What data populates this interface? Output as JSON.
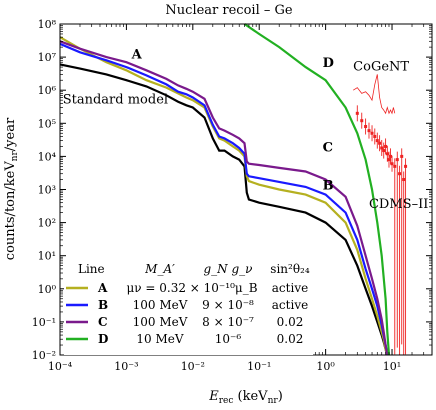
{
  "chart_data": {
    "type": "line",
    "title": "Nuclear recoil – Ge",
    "xlabel_main": "E",
    "xlabel_sub": "rec",
    "xlabel_unit_pre": " (keV",
    "xlabel_unit_sub": "nr",
    "xlabel_unit_post": ")",
    "ylabel": "counts/ton/keV",
    "ylabel_sub": "nr",
    "ylabel_post": "/year",
    "x_scale": "log",
    "y_scale": "log",
    "xlim": [
      0.0001,
      40
    ],
    "ylim": [
      0.01,
      100000000
    ],
    "grid": false,
    "x_ticks": [
      {
        "value": 0.0001,
        "label": "10⁻⁴"
      },
      {
        "value": 0.001,
        "label": "10⁻³"
      },
      {
        "value": 0.01,
        "label": "10⁻²"
      },
      {
        "value": 0.1,
        "label": "10⁻¹"
      },
      {
        "value": 1,
        "label": "10⁰"
      },
      {
        "value": 10,
        "label": "10¹"
      }
    ],
    "y_ticks": [
      {
        "value": 0.01,
        "label": "10⁻²"
      },
      {
        "value": 0.1,
        "label": "10⁻¹"
      },
      {
        "value": 1,
        "label": "10⁰"
      },
      {
        "value": 10,
        "label": "10¹"
      },
      {
        "value": 100,
        "label": "10²"
      },
      {
        "value": 1000,
        "label": "10³"
      },
      {
        "value": 10000,
        "label": "10⁴"
      },
      {
        "value": 100000,
        "label": "10⁵"
      },
      {
        "value": 1000000,
        "label": "10⁶"
      },
      {
        "value": 10000000,
        "label": "10⁷"
      },
      {
        "value": 100000000,
        "label": "10⁸"
      }
    ],
    "series": [
      {
        "name": "Standard model",
        "color": "#000000",
        "x": [
          0.0001,
          0.0002,
          0.0005,
          0.001,
          0.002,
          0.004,
          0.006,
          0.008,
          0.01,
          0.015,
          0.02,
          0.025,
          0.03,
          0.04,
          0.05,
          0.06,
          0.065,
          0.07,
          0.1,
          0.2,
          0.5,
          1,
          2,
          3,
          4,
          5,
          6,
          7,
          7.5,
          8,
          8.5
        ],
        "y": [
          6000000,
          4500000,
          3000000,
          2000000,
          1300000,
          700000,
          450000,
          350000,
          300000,
          150000,
          35000,
          15000,
          15000,
          10000,
          8000,
          5000,
          800,
          500,
          400,
          300,
          200,
          100,
          30,
          5,
          1,
          0.3,
          0.1,
          0.04,
          0.025,
          0.015,
          0.01
        ]
      },
      {
        "name": "A",
        "color": "#b5b020",
        "x": [
          0.0001,
          0.0002,
          0.0005,
          0.001,
          0.002,
          0.004,
          0.006,
          0.008,
          0.01,
          0.015,
          0.02,
          0.025,
          0.03,
          0.04,
          0.05,
          0.06,
          0.065,
          0.07,
          0.1,
          0.2,
          0.5,
          1,
          2,
          3,
          4,
          5,
          6,
          7,
          7.5,
          8,
          8.5
        ],
        "y": [
          40000000,
          18000000,
          7000000,
          4000000,
          2000000,
          1200000,
          800000,
          600000,
          500000,
          300000,
          80000,
          35000,
          30000,
          20000,
          15000,
          10000,
          2500,
          1800,
          1400,
          1000,
          700,
          400,
          100,
          15,
          2,
          0.5,
          0.15,
          0.05,
          0.03,
          0.015,
          0.01
        ]
      },
      {
        "name": "B",
        "color": "#1a1aff",
        "x": [
          0.0001,
          0.0002,
          0.0005,
          0.001,
          0.002,
          0.004,
          0.006,
          0.008,
          0.01,
          0.015,
          0.02,
          0.025,
          0.03,
          0.04,
          0.05,
          0.06,
          0.065,
          0.07,
          0.1,
          0.2,
          0.5,
          1,
          2,
          3,
          4,
          5,
          6,
          7,
          7.5,
          8,
          8.5
        ],
        "y": [
          25000000,
          14000000,
          8000000,
          5000000,
          2800000,
          1500000,
          900000,
          750000,
          600000,
          350000,
          90000,
          40000,
          35000,
          25000,
          18000,
          12000,
          3000,
          2500,
          2200,
          1700,
          1200,
          700,
          200,
          30,
          4,
          1,
          0.3,
          0.08,
          0.04,
          0.02,
          0.01
        ]
      },
      {
        "name": "C",
        "color": "#7a1a8c",
        "x": [
          0.0001,
          0.0002,
          0.0005,
          0.001,
          0.002,
          0.004,
          0.006,
          0.008,
          0.01,
          0.015,
          0.02,
          0.025,
          0.03,
          0.04,
          0.05,
          0.06,
          0.065,
          0.07,
          0.1,
          0.2,
          0.5,
          1,
          2,
          3,
          4,
          5,
          6,
          7,
          7.5,
          8,
          8.5
        ],
        "y": [
          30000000,
          18000000,
          10000000,
          7000000,
          4000000,
          2200000,
          1400000,
          1100000,
          900000,
          550000,
          150000,
          70000,
          60000,
          45000,
          35000,
          25000,
          7000,
          6000,
          5500,
          4500,
          3500,
          2000,
          600,
          80,
          10,
          2,
          0.5,
          0.12,
          0.05,
          0.02,
          0.01
        ]
      },
      {
        "name": "D",
        "color": "#22b022",
        "x": [
          0.06,
          0.1,
          0.2,
          0.5,
          1,
          2,
          3,
          4,
          5,
          6,
          7,
          8,
          8.5,
          9
        ],
        "y": [
          100000000,
          50000000,
          20000000,
          5000000,
          2000000,
          300000,
          50000,
          8000,
          1000,
          100,
          10,
          0.5,
          0.05,
          0.01
        ]
      }
    ],
    "cogent": {
      "name": "CoGeNT",
      "color": "#ee2222",
      "x": [
        2.6,
        3,
        3.5,
        4,
        4.5,
        5,
        5.5,
        6,
        6.5,
        7,
        7.5,
        8,
        8.5,
        9,
        9.5,
        10,
        10.5,
        11
      ],
      "y": [
        1000000,
        1200000,
        800000,
        900000,
        700000,
        500000,
        1500000,
        3000000,
        600000,
        300000,
        250000,
        200000,
        300000,
        200000,
        250000,
        200000,
        300000,
        200000
      ]
    },
    "cdms": {
      "name": "CDMS–II",
      "color": "#ee2222",
      "x": [
        3,
        3.5,
        4,
        4.5,
        5,
        5.5,
        6,
        6.5,
        7,
        7.5,
        8,
        8.5,
        9,
        9.5,
        10,
        11,
        12,
        13,
        14,
        15,
        16
      ],
      "y": [
        200000,
        120000,
        80000,
        60000,
        50000,
        40000,
        30000,
        25000,
        18000,
        15000,
        20000,
        12000,
        8000,
        10000,
        6000,
        5000,
        8000,
        3000,
        10000,
        2000,
        5000
      ]
    },
    "curve_labels": [
      {
        "text": "A",
        "x": 0.0012,
        "y": 9000000
      },
      {
        "text": "B",
        "x": 0.9,
        "y": 1000
      },
      {
        "text": "C",
        "x": 0.9,
        "y": 14000
      },
      {
        "text": "D",
        "x": 0.9,
        "y": 5000000
      },
      {
        "text": "Standard model",
        "x": 0.00011,
        "y": 400000
      },
      {
        "text": "CoGeNT",
        "x": 2.6,
        "y": 4000000
      },
      {
        "text": "CDMS–II",
        "x": 4.5,
        "y": 280
      }
    ],
    "legend": {
      "placement": "bottom-left",
      "headers": [
        "Line",
        "M_A′",
        "g_N g_ν",
        "sin²θ₂₄"
      ],
      "rows": [
        {
          "key": "A",
          "color": "#b5b020",
          "mass": "μν = 0.32 × 10⁻¹⁰μ_B",
          "coupling": "",
          "sin2": "active"
        },
        {
          "key": "B",
          "color": "#1a1aff",
          "mass": "100 MeV",
          "coupling": "9 × 10⁻⁸",
          "sin2": "active"
        },
        {
          "key": "C",
          "color": "#7a1a8c",
          "mass": "100 MeV",
          "coupling": "8 × 10⁻⁷",
          "sin2": "0.02"
        },
        {
          "key": "D",
          "color": "#22b022",
          "mass": "10 MeV",
          "coupling": "10⁻⁶",
          "sin2": "0.02"
        }
      ]
    }
  }
}
